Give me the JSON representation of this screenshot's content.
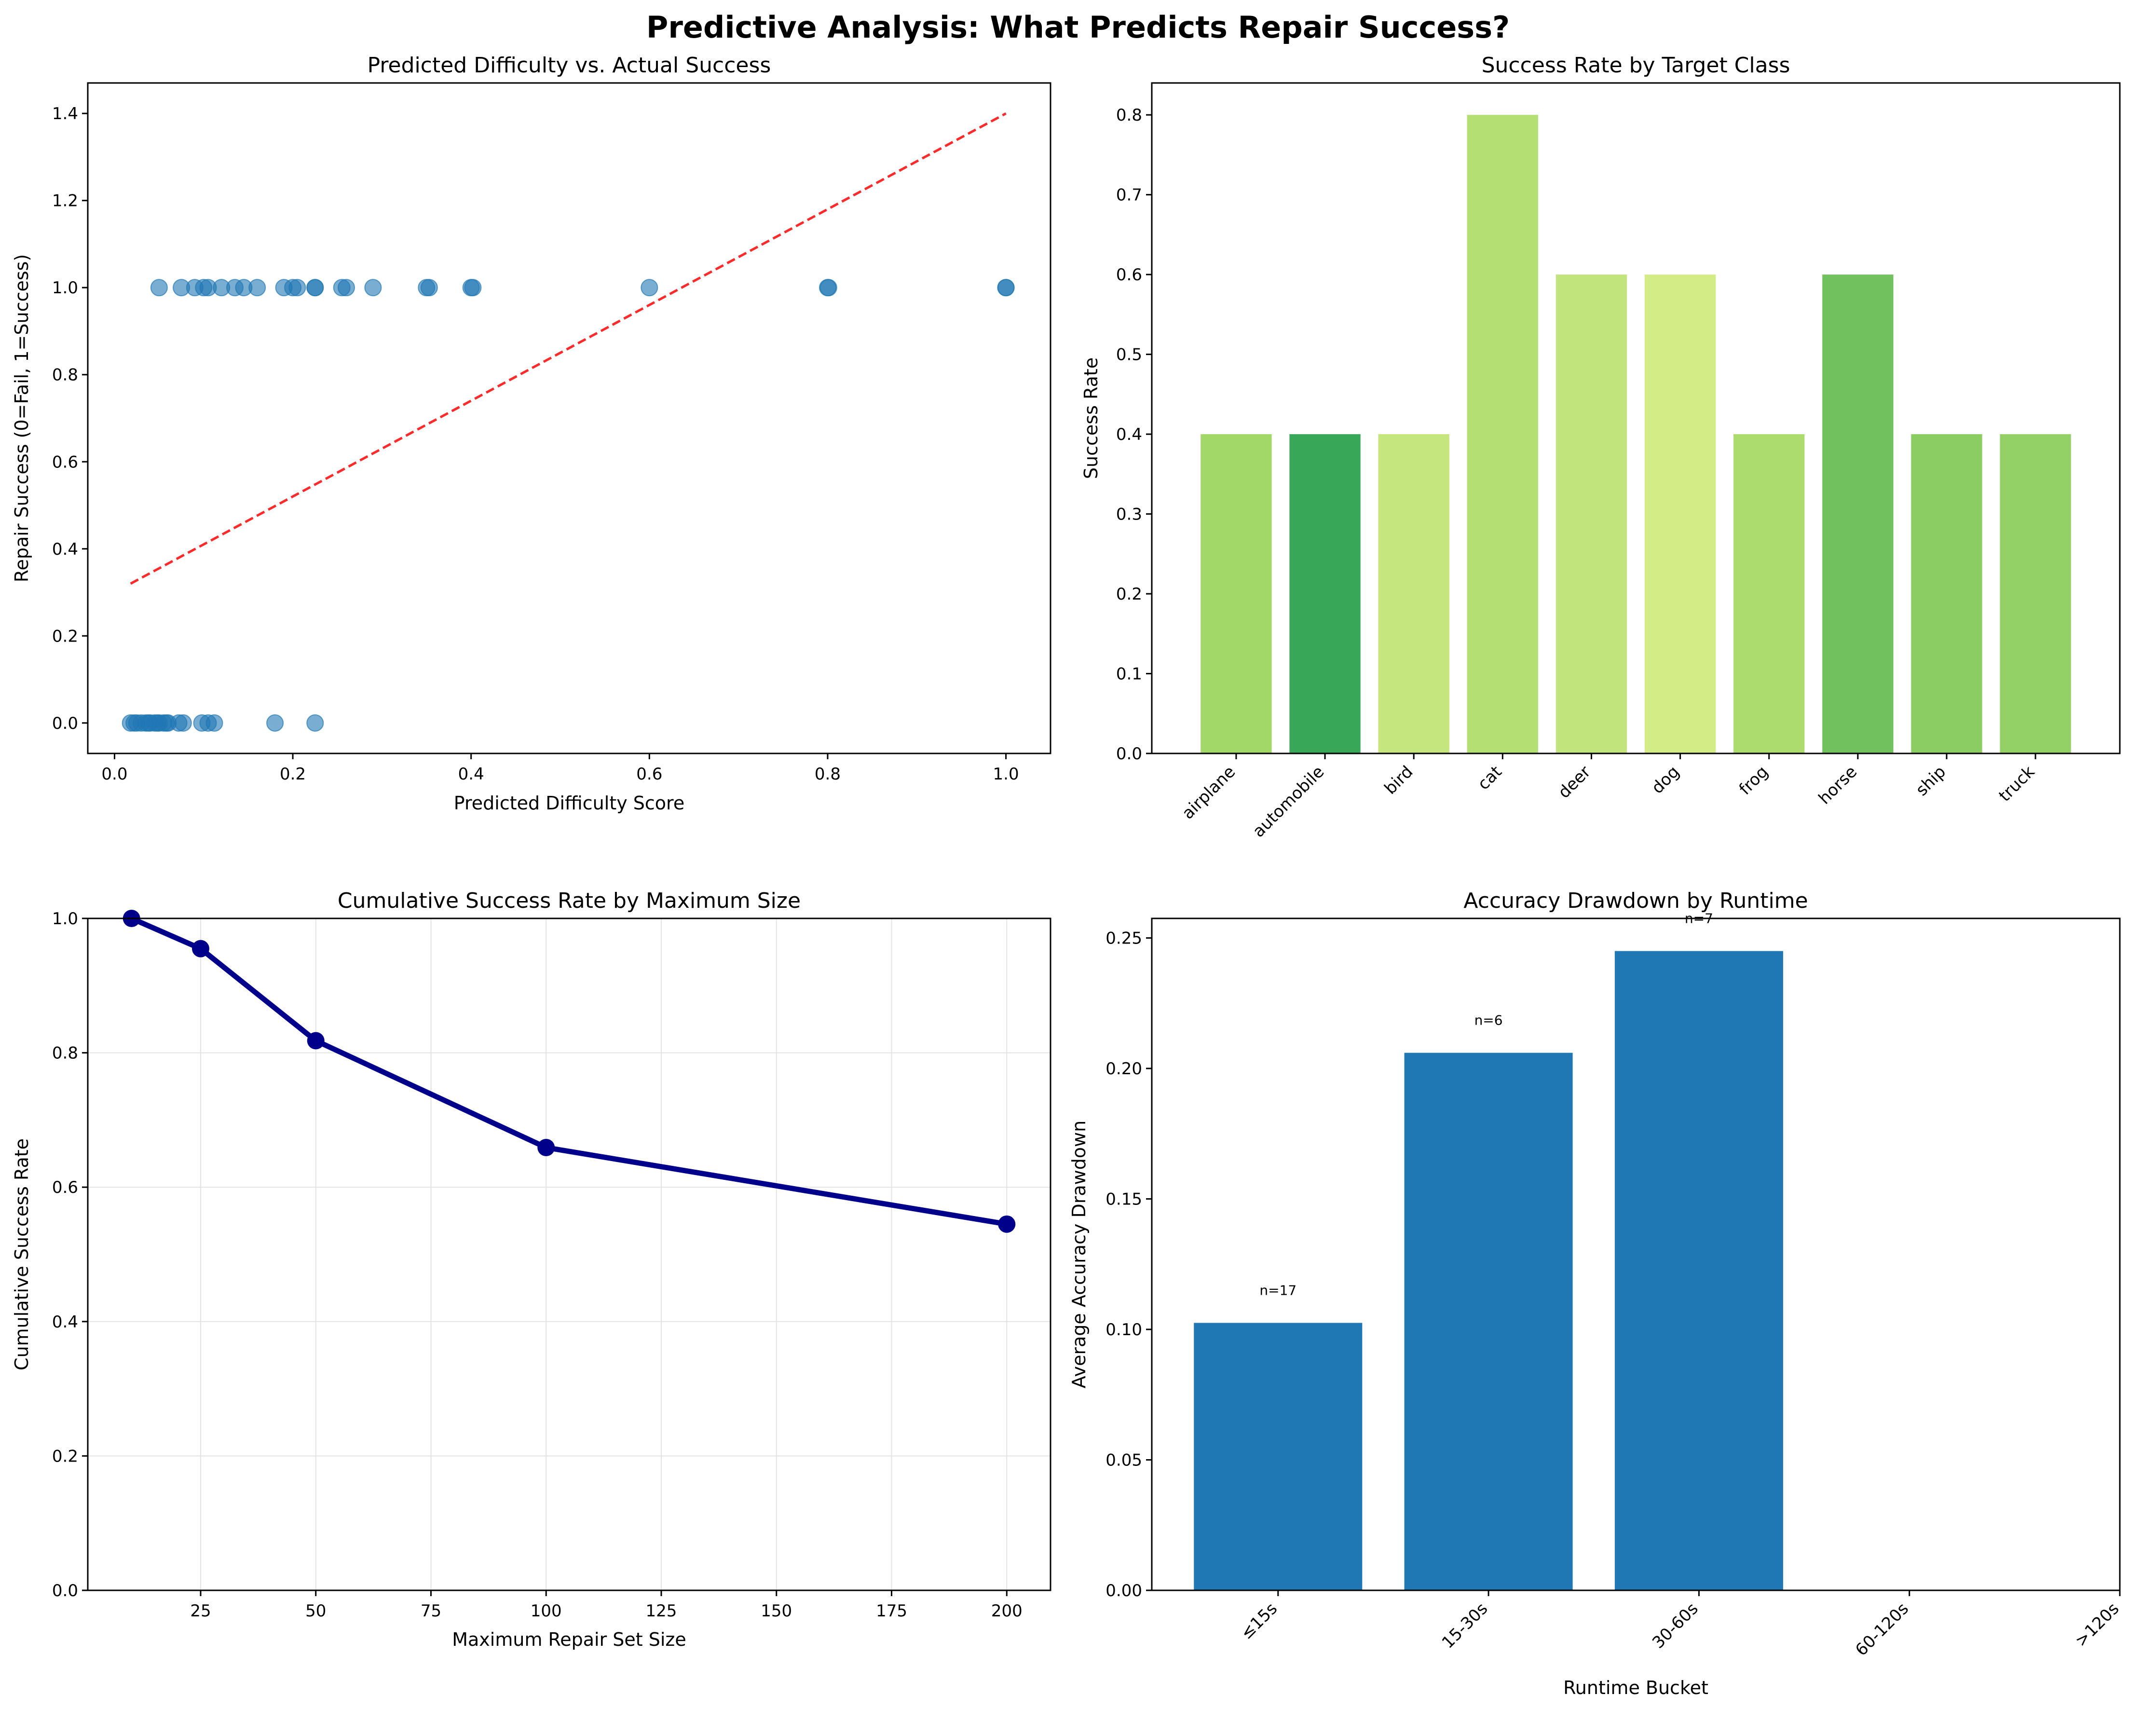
{
  "figure": {
    "suptitle": "Predictive Analysis: What Predicts Repair Success?"
  },
  "chart_data": [
    {
      "type": "scatter",
      "title": "Predicted Difficulty vs. Actual Success",
      "xlabel": "Predicted Difficulty Score",
      "ylabel": "Repair Success (0=Fail, 1=Success)",
      "xlim": [
        -0.03,
        1.05
      ],
      "ylim": [
        -0.07,
        1.47
      ],
      "xticks": [
        0.0,
        0.2,
        0.4,
        0.6,
        0.8,
        1.0
      ],
      "xtick_labels": [
        "0.0",
        "0.2",
        "0.4",
        "0.6",
        "0.8",
        "1.0"
      ],
      "yticks": [
        0.0,
        0.2,
        0.4,
        0.6,
        0.8,
        1.0,
        1.2,
        1.4
      ],
      "ytick_labels": [
        "0.0",
        "0.2",
        "0.4",
        "0.6",
        "0.8",
        "1.0",
        "1.2",
        "1.4"
      ],
      "grid": false,
      "point_color": "#1f77b4",
      "series": [
        {
          "x": [
            0.05,
            0.075,
            0.09,
            0.1,
            0.105,
            0.12,
            0.135,
            0.145,
            0.16,
            0.19,
            0.2,
            0.205,
            0.225,
            0.225,
            0.255,
            0.26,
            0.29,
            0.35,
            0.353,
            0.4,
            0.402,
            0.6,
            0.8,
            0.801,
            1.0,
            1.0
          ],
          "y": [
            1,
            1,
            1,
            1,
            1,
            1,
            1,
            1,
            1,
            1,
            1,
            1,
            1,
            1,
            1,
            1,
            1,
            1,
            1,
            1,
            1,
            1,
            1,
            1,
            1,
            1
          ]
        },
        {
          "x": [
            0.018,
            0.022,
            0.025,
            0.03,
            0.035,
            0.038,
            0.04,
            0.045,
            0.048,
            0.05,
            0.055,
            0.058,
            0.06,
            0.072,
            0.077,
            0.098,
            0.105,
            0.112,
            0.18,
            0.225
          ],
          "y": [
            0,
            0,
            0,
            0,
            0,
            0,
            0,
            0,
            0,
            0,
            0,
            0,
            0,
            0,
            0,
            0,
            0,
            0,
            0,
            0
          ]
        }
      ],
      "trendline": {
        "x": [
          0.018,
          1.0
        ],
        "y": [
          0.32,
          1.4
        ],
        "color": "#ff2a2a",
        "style": "dashed"
      }
    },
    {
      "type": "bar",
      "title": "Success Rate by Target Class",
      "xlabel": "",
      "ylabel": "Success Rate",
      "ylim": [
        0,
        0.84
      ],
      "yticks": [
        0.0,
        0.1,
        0.2,
        0.3,
        0.4,
        0.5,
        0.6,
        0.7,
        0.8
      ],
      "ytick_labels": [
        "0.0",
        "0.1",
        "0.2",
        "0.3",
        "0.4",
        "0.5",
        "0.6",
        "0.7",
        "0.8"
      ],
      "categories": [
        "airplane",
        "automobile",
        "bird",
        "cat",
        "deer",
        "dog",
        "frog",
        "horse",
        "ship",
        "truck"
      ],
      "values": [
        0.4,
        0.4,
        0.4,
        0.8,
        0.6,
        0.6,
        0.4,
        0.6,
        0.4,
        0.4
      ],
      "colors": [
        "#a1d867",
        "#39a758",
        "#c5e67e",
        "#b4df72",
        "#c1e47c",
        "#d4ec85",
        "#acdc6d",
        "#71c15f",
        "#8ccd63",
        "#93d166"
      ],
      "grid": false
    },
    {
      "type": "line",
      "title": "Cumulative Success Rate by Maximum Size",
      "xlabel": "Maximum Repair Set Size",
      "ylabel": "Cumulative Success Rate",
      "xlim": [
        0.5,
        209.5
      ],
      "ylim": [
        0,
        1.0
      ],
      "xticks": [
        25,
        50,
        75,
        100,
        125,
        150,
        175,
        200
      ],
      "xtick_labels": [
        "25",
        "50",
        "75",
        "100",
        "125",
        "150",
        "175",
        "200"
      ],
      "yticks": [
        0.0,
        0.2,
        0.4,
        0.6,
        0.8,
        1.0
      ],
      "ytick_labels": [
        "0.0",
        "0.2",
        "0.4",
        "0.6",
        "0.8",
        "1.0"
      ],
      "x": [
        10,
        25,
        50,
        100,
        200
      ],
      "y": [
        1.0,
        0.955,
        0.818,
        0.659,
        0.545
      ],
      "color": "#00008b",
      "grid": true
    },
    {
      "type": "bar",
      "title": "Accuracy Drawdown by Runtime",
      "xlabel": "Runtime Bucket",
      "ylabel": "Average Accuracy Drawdown",
      "ylim": [
        0,
        0.2575
      ],
      "yticks": [
        0.0,
        0.05,
        0.1,
        0.15,
        0.2,
        0.25
      ],
      "ytick_labels": [
        "0.00",
        "0.05",
        "0.10",
        "0.15",
        "0.20",
        "0.25"
      ],
      "categories": [
        "≤15s",
        "15-30s",
        "30-60s",
        "60-120s",
        ">120s"
      ],
      "values": [
        0.1025,
        0.206,
        0.245,
        0,
        0
      ],
      "annotations": [
        "n=17",
        "n=6",
        "n=7",
        "",
        ""
      ],
      "color": "#1f77b4",
      "grid": false
    }
  ]
}
